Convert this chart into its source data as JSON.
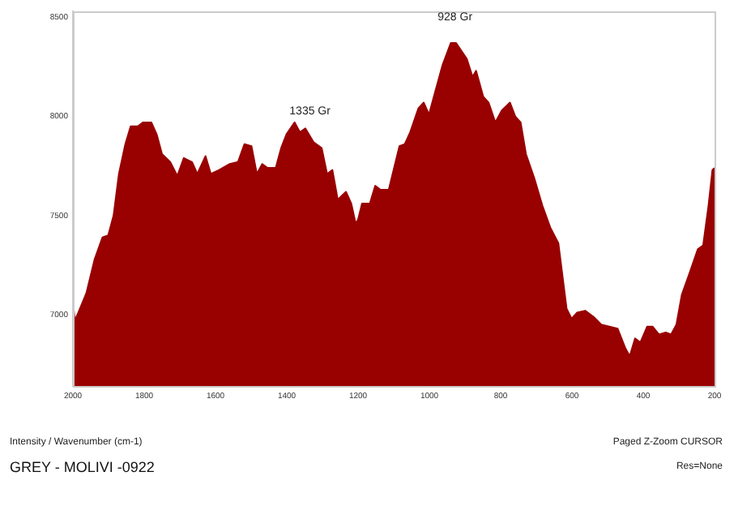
{
  "chart_data": {
    "type": "area",
    "title": "GREY - MOLIVI -0922",
    "color": "#990000",
    "marker": "none",
    "xlim": [
      2000,
      200
    ],
    "ylim": [
      6640,
      8530
    ],
    "xticks": [
      2000,
      1800,
      1600,
      1400,
      1200,
      1000,
      800,
      600,
      400,
      200
    ],
    "yticks": [
      7000,
      7500,
      8000,
      8500
    ],
    "x": [
      2000,
      1995,
      1985,
      1962,
      1939,
      1917,
      1901,
      1886,
      1871,
      1853,
      1838,
      1818,
      1803,
      1780,
      1765,
      1750,
      1727,
      1707,
      1689,
      1666,
      1651,
      1628,
      1613,
      1590,
      1560,
      1537,
      1519,
      1499,
      1484,
      1469,
      1454,
      1431,
      1416,
      1401,
      1378,
      1363,
      1348,
      1325,
      1302,
      1287,
      1272,
      1257,
      1234,
      1219,
      1207,
      1200,
      1189,
      1167,
      1152,
      1137,
      1114,
      1099,
      1084,
      1069,
      1054,
      1031,
      1016,
      1001,
      986,
      963,
      940,
      925,
      910,
      895,
      879,
      869,
      849,
      834,
      815,
      797,
      774,
      759,
      744,
      729,
      706,
      683,
      661,
      638,
      615,
      601,
      586,
      563,
      540,
      518,
      495,
      472,
      450,
      438,
      423,
      408,
      389,
      374,
      356,
      337,
      322,
      307,
      292,
      270,
      247,
      232,
      217,
      206,
      200
    ],
    "values": [
      7070,
      6970,
      7010,
      7110,
      7280,
      7390,
      7400,
      7500,
      7710,
      7860,
      7950,
      7950,
      7970,
      7970,
      7910,
      7810,
      7770,
      7700,
      7790,
      7770,
      7710,
      7800,
      7710,
      7730,
      7760,
      7770,
      7860,
      7850,
      7710,
      7760,
      7740,
      7740,
      7840,
      7910,
      7970,
      7920,
      7940,
      7870,
      7840,
      7710,
      7730,
      7580,
      7620,
      7560,
      7460,
      7480,
      7560,
      7560,
      7650,
      7630,
      7630,
      7740,
      7850,
      7860,
      7920,
      8040,
      8070,
      8010,
      8110,
      8260,
      8370,
      8370,
      8330,
      8290,
      8200,
      8230,
      8100,
      8070,
      7970,
      8030,
      8070,
      8000,
      7970,
      7810,
      7690,
      7550,
      7440,
      7360,
      7030,
      6980,
      7010,
      7020,
      6990,
      6950,
      6940,
      6930,
      6830,
      6790,
      6880,
      6860,
      6940,
      6940,
      6900,
      6910,
      6900,
      6950,
      7100,
      7210,
      7330,
      7350,
      7550,
      7730,
      7740
    ],
    "annotations": [
      {
        "text": "1335 Gr",
        "x": 1335,
        "y": 7900
      },
      {
        "text": "928 Gr",
        "x": 928,
        "y": 8373
      },
      "Intensity / Wavenumber (cm-1)",
      "Paged  Z-Zoom CURSOR",
      "Res=None"
    ]
  }
}
